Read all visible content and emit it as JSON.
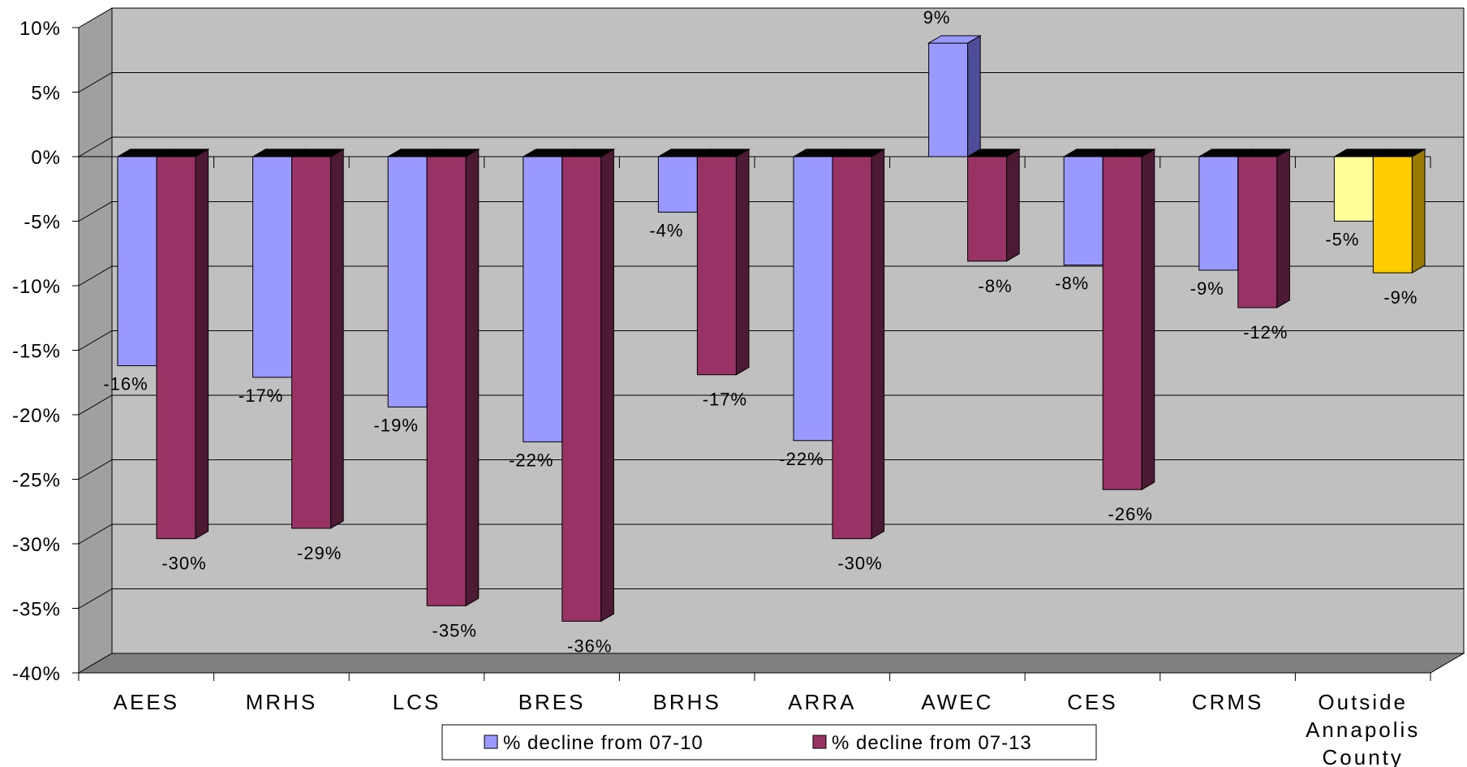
{
  "chart_data": {
    "type": "bar",
    "categories": [
      "AEES",
      "MRHS",
      "LCS",
      "BRES",
      "BRHS",
      "ARRA",
      "AWEC",
      "CES",
      "CRMS",
      [
        "Outside",
        "Annapolis",
        "County"
      ]
    ],
    "series": [
      {
        "name": "% decline from 07-10",
        "values": [
          -16.2,
          -17.1,
          -19.4,
          -22.1,
          -4.3,
          -22.0,
          8.8,
          -8.4,
          -8.8,
          -5.0
        ],
        "labels": [
          "-16%",
          "-17%",
          "-19%",
          "-22%",
          "-4%",
          "-22%",
          "9%",
          "-8%",
          "-9%",
          "-5%"
        ]
      },
      {
        "name": "% decline from 07-13",
        "values": [
          -29.6,
          -28.8,
          -34.8,
          -36.0,
          -16.9,
          -29.6,
          -8.1,
          -25.8,
          -11.7,
          -9.0
        ],
        "labels": [
          "-30%",
          "-29%",
          "-35%",
          "-36%",
          "-17%",
          "-30%",
          "-8%",
          "-26%",
          "-12%",
          "-9%"
        ]
      }
    ],
    "highlight_category": 9,
    "y_ticks": [
      "10%",
      "5%",
      "0%",
      "-5%",
      "-10%",
      "-15%",
      "-20%",
      "-25%",
      "-30%",
      "-35%",
      "-40%"
    ],
    "ylim": [
      -40,
      10
    ],
    "y_step": 5,
    "grid": true,
    "legend_position": "bottom",
    "colors": {
      "series1_front": "#9999ff",
      "series1_side": "#4d4d99",
      "series2_front": "#993366",
      "series2_side": "#4d1a33",
      "highlight1_front": "#ffff99",
      "highlight1_side": "#99994d",
      "highlight2_front": "#ffcc00",
      "highlight2_side": "#997a00",
      "bar_top": "#000000",
      "wall": "#c0c0c0",
      "floor": "#808080"
    }
  }
}
